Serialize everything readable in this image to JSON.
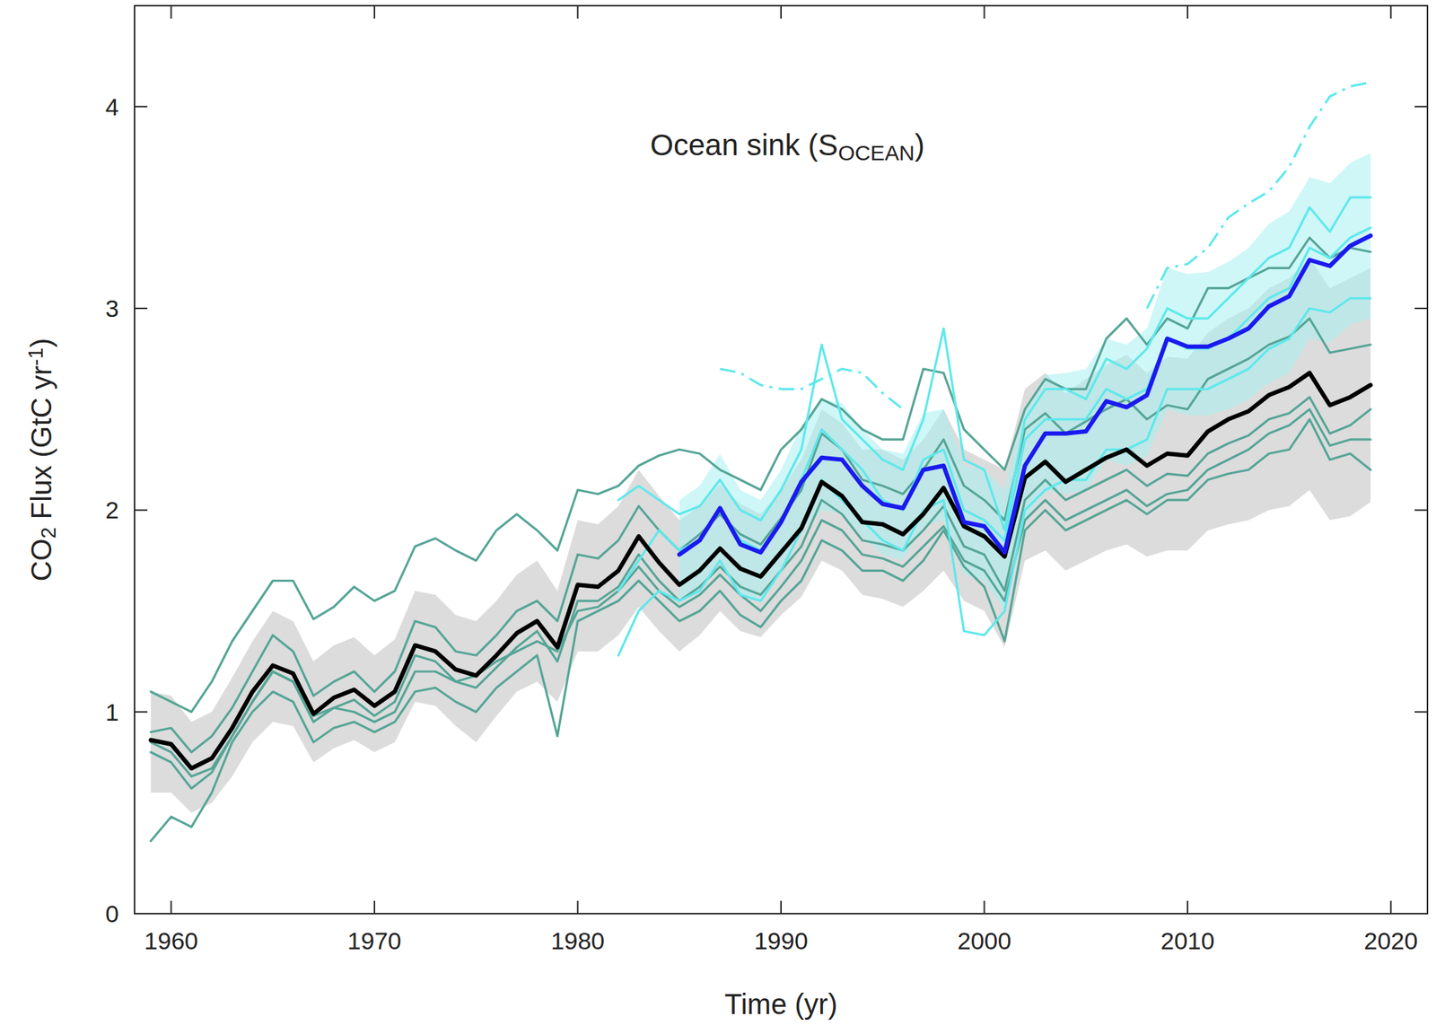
{
  "chart_data": {
    "type": "line",
    "title": [
      {
        "text": "Ocean sink (S"
      },
      {
        "text": "OCEAN",
        "sub": true
      },
      {
        "text": ")"
      }
    ],
    "x_label": "Time (yr)",
    "y_label": [
      {
        "text": "CO"
      },
      {
        "text": "2",
        "sub": true
      },
      {
        "text": " Flux (GtC yr"
      },
      {
        "text": "-1",
        "sup": true
      },
      {
        "text": ")"
      }
    ],
    "xlim": [
      1958.2,
      2021.8
    ],
    "ylim": [
      0,
      4.5
    ],
    "xticks": [
      1960,
      1970,
      1980,
      1990,
      2000,
      2010,
      2020
    ],
    "yticks": [
      0,
      1,
      2,
      3,
      4
    ],
    "grid": false,
    "x": [
      1959,
      1960,
      1961,
      1962,
      1963,
      1964,
      1965,
      1966,
      1967,
      1968,
      1969,
      1970,
      1971,
      1972,
      1973,
      1974,
      1975,
      1976,
      1977,
      1978,
      1979,
      1980,
      1981,
      1982,
      1983,
      1984,
      1985,
      1986,
      1987,
      1988,
      1989,
      1990,
      1991,
      1992,
      1993,
      1994,
      1995,
      1996,
      1997,
      1998,
      1999,
      2000,
      2001,
      2002,
      2003,
      2004,
      2005,
      2006,
      2007,
      2008,
      2009,
      2010,
      2011,
      2012,
      2013,
      2014,
      2015,
      2016,
      2017,
      2018,
      2019
    ],
    "series": [
      {
        "type": "band",
        "color": "#dcdcdc",
        "values": [
          0.6,
          0.6,
          0.5,
          0.55,
          0.68,
          0.85,
          0.95,
          0.93,
          0.75,
          0.82,
          0.86,
          0.8,
          0.85,
          1.05,
          1.03,
          0.93,
          0.85,
          0.98,
          1.1,
          1.15,
          1.05,
          1.3,
          1.3,
          1.38,
          1.52,
          1.4,
          1.3,
          1.38,
          1.5,
          1.4,
          1.37,
          1.48,
          1.57,
          1.75,
          1.7,
          1.58,
          1.56,
          1.52,
          1.6,
          1.7,
          1.55,
          1.5,
          1.32,
          1.75,
          1.8,
          1.7,
          1.75,
          1.8,
          1.83,
          1.77,
          1.8,
          1.8,
          1.9,
          1.93,
          1.95,
          2.0,
          2.02,
          2.1,
          1.95,
          1.97,
          2.04
        ],
        "upper": [
          1.1,
          1.08,
          0.95,
          1.0,
          1.17,
          1.35,
          1.5,
          1.45,
          1.25,
          1.33,
          1.37,
          1.28,
          1.36,
          1.6,
          1.58,
          1.48,
          1.45,
          1.55,
          1.68,
          1.75,
          1.6,
          1.95,
          1.93,
          2.02,
          2.2,
          2.07,
          1.95,
          2.02,
          2.13,
          2.03,
          1.98,
          2.1,
          2.25,
          2.5,
          2.43,
          2.3,
          2.3,
          2.25,
          2.35,
          2.5,
          2.3,
          2.25,
          2.2,
          2.6,
          2.68,
          2.58,
          2.65,
          2.72,
          2.77,
          2.68,
          2.76,
          2.75,
          2.88,
          2.95,
          3.0,
          3.1,
          3.15,
          3.25,
          3.1,
          3.15,
          3.2
        ]
      },
      {
        "type": "band",
        "color": "#a8f0f0",
        "values": [
          null,
          null,
          null,
          null,
          null,
          null,
          null,
          null,
          null,
          null,
          null,
          null,
          null,
          null,
          null,
          null,
          null,
          null,
          null,
          null,
          null,
          null,
          null,
          null,
          null,
          null,
          1.55,
          1.6,
          1.75,
          1.58,
          1.55,
          1.7,
          1.88,
          2.0,
          1.98,
          1.87,
          1.78,
          1.75,
          1.92,
          1.95,
          1.68,
          1.65,
          1.5,
          1.95,
          2.1,
          2.08,
          2.1,
          2.25,
          2.22,
          2.27,
          2.5,
          2.47,
          2.47,
          2.5,
          2.55,
          2.63,
          2.68,
          2.85,
          2.83,
          2.92,
          2.95
        ],
        "upper": [
          null,
          null,
          null,
          null,
          null,
          null,
          null,
          null,
          null,
          null,
          null,
          null,
          null,
          null,
          null,
          null,
          null,
          null,
          null,
          null,
          null,
          null,
          null,
          null,
          null,
          null,
          2.05,
          2.12,
          2.28,
          2.1,
          2.05,
          2.2,
          2.42,
          2.55,
          2.53,
          2.4,
          2.3,
          2.28,
          2.48,
          2.5,
          2.22,
          2.2,
          2.1,
          2.5,
          2.67,
          2.68,
          2.7,
          2.85,
          2.82,
          2.9,
          3.2,
          3.17,
          3.18,
          3.23,
          3.3,
          3.42,
          3.48,
          3.65,
          3.62,
          3.72,
          3.77
        ]
      },
      {
        "type": "line",
        "color": "#55a596",
        "values": [
          1.1,
          1.05,
          1.0,
          1.15,
          1.35,
          1.5,
          1.65,
          1.65,
          1.46,
          1.52,
          1.62,
          1.55,
          1.6,
          1.82,
          1.86,
          1.8,
          1.75,
          1.9,
          1.98,
          1.9,
          1.8,
          2.1,
          2.08,
          2.12,
          2.22,
          2.27,
          2.3,
          2.28,
          2.2,
          2.15,
          2.1,
          2.3,
          2.4,
          2.55,
          2.5,
          2.4,
          2.35,
          2.35,
          2.7,
          2.68,
          2.4,
          2.3,
          2.2,
          2.5,
          2.65,
          2.6,
          2.6,
          2.85,
          2.95,
          2.82,
          2.95,
          2.9,
          3.1,
          3.1,
          3.15,
          3.2,
          3.2,
          3.35,
          3.25,
          3.3,
          3.28
        ]
      },
      {
        "type": "line",
        "color": "#55a596",
        "values": [
          0.36,
          0.48,
          0.43,
          0.6,
          0.85,
          1.0,
          1.1,
          1.05,
          0.85,
          0.92,
          0.95,
          0.9,
          0.95,
          1.1,
          1.12,
          1.05,
          1.0,
          1.12,
          1.2,
          1.28,
          0.88,
          1.45,
          1.5,
          1.55,
          1.65,
          1.55,
          1.45,
          1.5,
          1.6,
          1.48,
          1.42,
          1.55,
          1.65,
          1.85,
          1.8,
          1.7,
          1.7,
          1.65,
          1.75,
          1.9,
          1.72,
          1.62,
          1.35,
          1.9,
          2.0,
          1.9,
          1.95,
          2.0,
          2.05,
          1.98,
          2.05,
          2.05,
          2.15,
          2.18,
          2.2,
          2.28,
          2.3,
          2.45,
          2.25,
          2.28,
          2.2
        ]
      },
      {
        "type": "line",
        "color": "#55a596",
        "values": [
          0.8,
          0.75,
          0.62,
          0.7,
          0.88,
          1.05,
          1.2,
          1.15,
          0.95,
          1.02,
          1.06,
          0.98,
          1.05,
          1.28,
          1.25,
          1.15,
          1.12,
          1.22,
          1.32,
          1.4,
          1.25,
          1.55,
          1.55,
          1.62,
          1.78,
          1.65,
          1.55,
          1.62,
          1.72,
          1.62,
          1.58,
          1.7,
          1.82,
          2.05,
          1.98,
          1.85,
          1.83,
          1.8,
          1.9,
          2.02,
          1.82,
          1.78,
          1.6,
          2.05,
          2.15,
          2.05,
          2.1,
          2.15,
          2.2,
          2.12,
          2.18,
          2.17,
          2.28,
          2.33,
          2.37,
          2.45,
          2.48,
          2.56,
          2.38,
          2.42,
          2.5
        ]
      },
      {
        "type": "line",
        "color": "#55a596",
        "values": [
          0.9,
          0.92,
          0.8,
          0.88,
          1.02,
          1.2,
          1.38,
          1.3,
          1.08,
          1.15,
          1.2,
          1.1,
          1.2,
          1.45,
          1.42,
          1.3,
          1.28,
          1.38,
          1.5,
          1.55,
          1.45,
          1.78,
          1.76,
          1.85,
          2.02,
          1.9,
          1.8,
          1.88,
          1.98,
          1.88,
          1.83,
          1.96,
          2.1,
          2.38,
          2.3,
          2.15,
          2.12,
          2.08,
          2.2,
          2.35,
          2.12,
          2.05,
          1.95,
          2.4,
          2.48,
          2.38,
          2.44,
          2.5,
          2.55,
          2.45,
          2.52,
          2.5,
          2.65,
          2.7,
          2.75,
          2.82,
          2.86,
          2.95,
          2.78,
          2.8,
          2.82
        ]
      },
      {
        "type": "line",
        "color": "#55a596",
        "values": [
          0.85,
          0.8,
          0.68,
          0.72,
          0.88,
          1.05,
          1.2,
          1.15,
          0.98,
          1.02,
          1.0,
          0.95,
          1.0,
          1.2,
          1.2,
          1.15,
          1.18,
          1.25,
          1.3,
          1.35,
          1.3,
          1.5,
          1.52,
          1.6,
          1.72,
          1.6,
          1.52,
          1.58,
          1.68,
          1.58,
          1.5,
          1.62,
          1.75,
          1.95,
          1.9,
          1.78,
          1.76,
          1.72,
          1.82,
          1.92,
          1.75,
          1.7,
          1.55,
          1.95,
          2.05,
          1.95,
          2.0,
          2.05,
          2.1,
          2.02,
          2.08,
          2.1,
          2.2,
          2.25,
          2.3,
          2.38,
          2.42,
          2.5,
          2.32,
          2.35,
          2.35
        ]
      },
      {
        "type": "line",
        "color": "#5ee8ec",
        "values": [
          null,
          null,
          null,
          null,
          null,
          null,
          null,
          null,
          null,
          null,
          null,
          null,
          null,
          null,
          null,
          null,
          null,
          null,
          null,
          null,
          null,
          null,
          null,
          1.28,
          1.5,
          1.6,
          1.55,
          1.6,
          1.75,
          1.58,
          1.55,
          1.7,
          1.9,
          2.15,
          2.05,
          1.95,
          1.85,
          1.8,
          2.0,
          2.05,
          1.4,
          1.38,
          1.5,
          2.0,
          2.1,
          2.15,
          2.15,
          2.3,
          2.3,
          2.35,
          2.6,
          2.6,
          2.6,
          2.65,
          2.7,
          2.8,
          2.85,
          3.0,
          2.98,
          3.05,
          3.05
        ]
      },
      {
        "type": "line",
        "color": "#5ee8ec",
        "values": [
          null,
          null,
          null,
          null,
          null,
          null,
          null,
          null,
          null,
          null,
          null,
          null,
          null,
          null,
          null,
          null,
          null,
          null,
          null,
          null,
          null,
          null,
          null,
          2.05,
          2.12,
          2.05,
          1.98,
          2.02,
          2.15,
          2.0,
          1.95,
          2.1,
          2.3,
          2.82,
          2.45,
          2.35,
          2.25,
          2.2,
          2.45,
          2.9,
          2.25,
          2.2,
          1.9,
          2.45,
          2.6,
          2.6,
          2.55,
          2.75,
          2.7,
          2.8,
          3.0,
          2.95,
          2.95,
          3.05,
          3.15,
          3.25,
          3.3,
          3.5,
          3.38,
          3.55,
          3.55
        ]
      },
      {
        "type": "line",
        "color": "#5ee8ec",
        "values": [
          null,
          null,
          null,
          null,
          null,
          null,
          null,
          null,
          null,
          null,
          null,
          null,
          null,
          null,
          null,
          null,
          null,
          null,
          null,
          null,
          null,
          null,
          null,
          1.6,
          1.75,
          1.9,
          1.8,
          1.85,
          2.0,
          1.85,
          1.8,
          1.95,
          2.15,
          2.4,
          2.3,
          2.2,
          2.05,
          2.0,
          2.25,
          2.3,
          2.0,
          1.95,
          1.85,
          2.35,
          2.45,
          2.45,
          2.45,
          2.6,
          2.55,
          2.6,
          2.85,
          2.8,
          2.8,
          2.85,
          2.95,
          3.05,
          3.1,
          3.3,
          3.25,
          3.35,
          3.4
        ]
      },
      {
        "type": "line",
        "color": "#5ee8ec",
        "line_style": "dashdot",
        "values": [
          null,
          null,
          null,
          null,
          null,
          null,
          null,
          null,
          null,
          null,
          null,
          null,
          null,
          null,
          null,
          null,
          null,
          null,
          null,
          null,
          null,
          null,
          null,
          null,
          null,
          null,
          null,
          null,
          2.7,
          2.68,
          2.62,
          2.6,
          2.6,
          2.65,
          2.7,
          2.68,
          2.58,
          2.5,
          null,
          null,
          null,
          null,
          null,
          null,
          null,
          null,
          null,
          null,
          null,
          3.0,
          3.2,
          3.22,
          3.3,
          3.45,
          3.52,
          3.58,
          3.7,
          3.9,
          4.05,
          4.1,
          4.12
        ]
      },
      {
        "type": "line",
        "color": "#000000",
        "values": [
          0.86,
          0.84,
          0.72,
          0.77,
          0.92,
          1.1,
          1.23,
          1.19,
          0.99,
          1.07,
          1.11,
          1.03,
          1.1,
          1.33,
          1.3,
          1.21,
          1.18,
          1.28,
          1.39,
          1.45,
          1.32,
          1.63,
          1.62,
          1.7,
          1.87,
          1.74,
          1.63,
          1.7,
          1.81,
          1.71,
          1.67,
          1.79,
          1.91,
          2.14,
          2.07,
          1.94,
          1.93,
          1.88,
          1.98,
          2.11,
          1.92,
          1.87,
          1.77,
          2.16,
          2.24,
          2.14,
          2.2,
          2.26,
          2.3,
          2.22,
          2.28,
          2.27,
          2.39,
          2.45,
          2.49,
          2.57,
          2.61,
          2.68,
          2.52,
          2.56,
          2.62
        ]
      },
      {
        "type": "line",
        "color": "#1a1aee",
        "values": [
          null,
          null,
          null,
          null,
          null,
          null,
          null,
          null,
          null,
          null,
          null,
          null,
          null,
          null,
          null,
          null,
          null,
          null,
          null,
          null,
          null,
          null,
          null,
          null,
          null,
          null,
          1.78,
          1.85,
          2.01,
          1.83,
          1.79,
          1.94,
          2.14,
          2.26,
          2.25,
          2.12,
          2.03,
          2.01,
          2.2,
          2.22,
          1.94,
          1.92,
          1.79,
          2.22,
          2.38,
          2.38,
          2.39,
          2.54,
          2.51,
          2.57,
          2.85,
          2.81,
          2.81,
          2.85,
          2.9,
          3.01,
          3.06,
          3.24,
          3.21,
          3.31,
          3.36
        ]
      }
    ]
  }
}
